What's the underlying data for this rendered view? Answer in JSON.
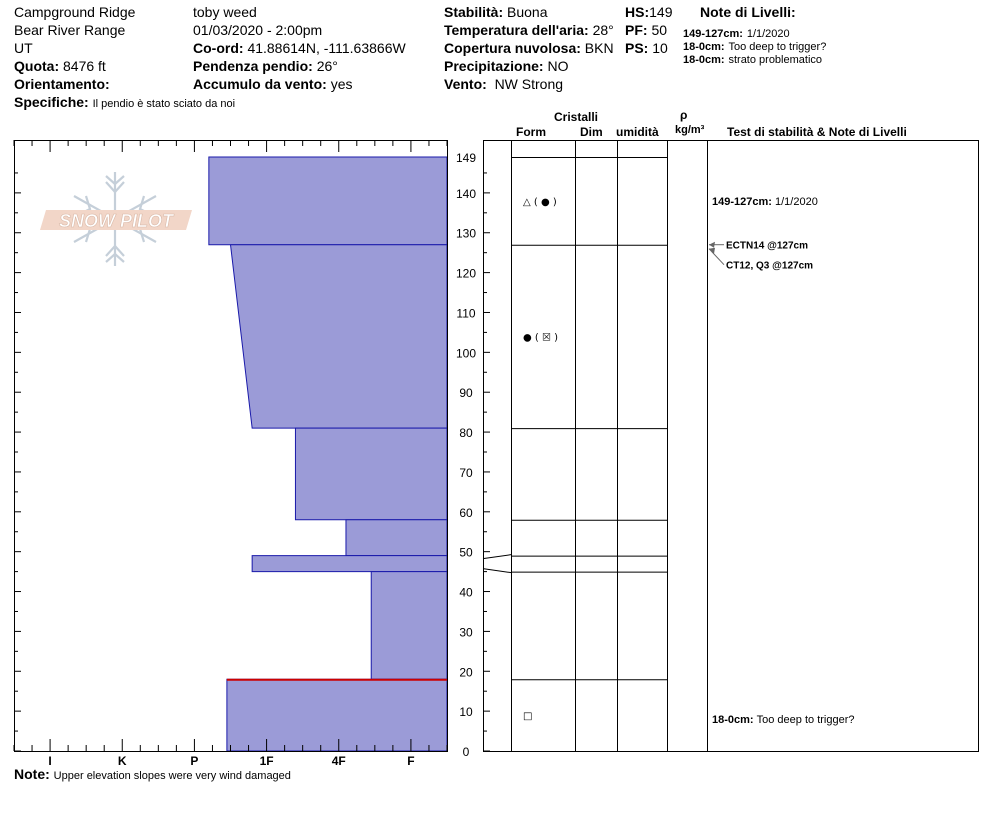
{
  "header": {
    "location": "Campground Ridge",
    "range": "Bear River Range",
    "state": "UT",
    "elevation_label": "Quota:",
    "elevation_value": "8476 ft",
    "aspect_label": "Orientamento:",
    "aspect_value": "",
    "specifics_label": "Specifiche:",
    "specifics_value": "Il pendio è stato sciato da noi",
    "observer": "toby weed",
    "datetime": "01/03/2020 - 2:00pm",
    "coord_label": "Co-ord:",
    "coord_value": "41.88614N, -111.63866W",
    "slope_label": "Pendenza pendio:",
    "slope_value": "26°",
    "wind_loading_label": "Accumulo da vento:",
    "wind_loading_value": "yes",
    "stability_label": "Stabilità:",
    "stability_value": "Buona",
    "air_temp_label": "Temperatura dell'aria:",
    "air_temp_value": "28°",
    "cloud_label": "Copertura nuvolosa:",
    "cloud_value": "BKN",
    "precip_label": "Precipitazione:",
    "precip_value": "NO",
    "wind_label": "Vento:",
    "wind_value": "NW Strong",
    "hs_label": "HS:",
    "hs_value": "149",
    "pf_label": "PF:",
    "pf_value": "50",
    "ps_label": "PS:",
    "ps_value": "10"
  },
  "layer_notes": {
    "title": "Note di Livelli:",
    "items": [
      {
        "range": "149-127cm:",
        "text": "1/1/2020"
      },
      {
        "range": "18-0cm:",
        "text": "Too deep to trigger?"
      },
      {
        "range": "18-0cm:",
        "text": "strato problematico"
      }
    ]
  },
  "table_headers": {
    "crystals": "Cristalli",
    "form": "Form",
    "size": "Dim",
    "moisture": "umidità",
    "rho": "ρ",
    "density_unit": "kg/m³",
    "tests": "Test di stabilità & Note di Livelli"
  },
  "footer": {
    "note_label": "Note:",
    "note_value": "Upper elevation slopes were very wind damaged"
  },
  "logo_text": "SNOW PILOT",
  "colors": {
    "layer_fill": "#9b9bd7",
    "layer_stroke": "#1a1aaa",
    "problem_line": "#cc0000",
    "test_arrow": "#666666"
  },
  "chart_data": {
    "type": "snow_profile",
    "y_axis": {
      "label": "",
      "unit": "cm",
      "range": [
        0,
        149
      ],
      "ticks": [
        0,
        10,
        20,
        30,
        40,
        50,
        60,
        70,
        80,
        90,
        100,
        110,
        120,
        130,
        140,
        149
      ]
    },
    "hardness_scale": [
      "I",
      "K",
      "P",
      "1F",
      "4F",
      "F"
    ],
    "layers": [
      {
        "bottom": 127,
        "top": 149,
        "hardness_top": 3.3,
        "hardness_bottom": 3.3
      },
      {
        "bottom": 81,
        "top": 127,
        "hardness_top": 3.0,
        "hardness_bottom": 2.7
      },
      {
        "bottom": 58,
        "top": 81,
        "hardness_top": 2.1,
        "hardness_bottom": 2.1
      },
      {
        "bottom": 49,
        "top": 58,
        "hardness_top": 1.4,
        "hardness_bottom": 1.4
      },
      {
        "bottom": 45,
        "top": 49,
        "hardness_top": 2.7,
        "hardness_bottom": 2.7
      },
      {
        "bottom": 18,
        "top": 45,
        "hardness_top": 1.05,
        "hardness_bottom": 1.05
      },
      {
        "bottom": 0,
        "top": 18,
        "hardness_top": 3.05,
        "hardness_bottom": 3.05
      }
    ],
    "problem_layer": {
      "depth": 18
    },
    "grain_forms": [
      {
        "depth": 138,
        "symbol": "△ ( ● )"
      },
      {
        "depth": 104,
        "symbol": "● ( ☒ )"
      },
      {
        "depth": 9,
        "symbol": "□"
      }
    ],
    "stability_tests": [
      {
        "depth": 127,
        "text": "ECTN14 @127cm"
      },
      {
        "depth": 127,
        "text": "CT12, Q3 @127cm"
      }
    ],
    "layer_comments": [
      {
        "depth": 138,
        "range": "149-127cm:",
        "text": "1/1/2020"
      },
      {
        "depth": 8,
        "range": "18-0cm:",
        "text": "Too deep to trigger?"
      }
    ]
  }
}
